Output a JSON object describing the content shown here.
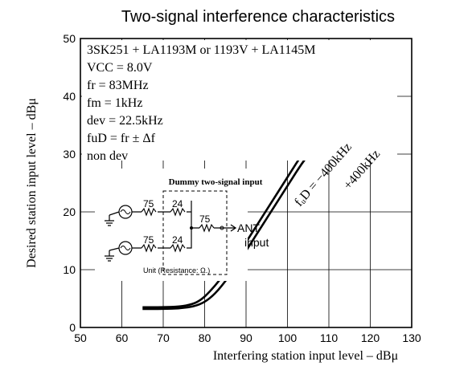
{
  "chart_data": {
    "type": "line",
    "title": "Two-signal interference characteristics",
    "xlabel": "Interfering station input level – dBμ",
    "ylabel": "Desired station input level – dBμ",
    "xlim": [
      50,
      130
    ],
    "ylim": [
      0,
      50
    ],
    "xticks": [
      "50",
      "60",
      "70",
      "80",
      "90",
      "100",
      "110",
      "120",
      "130"
    ],
    "yticks": [
      "0",
      "10",
      "20",
      "30",
      "40",
      "50"
    ],
    "grid": true,
    "series": [
      {
        "name": "fᵤD = −400kHz",
        "points": [
          [
            65,
            3.5
          ],
          [
            70,
            3.5
          ],
          [
            74,
            3.6
          ],
          [
            77,
            4.0
          ],
          [
            79,
            4.7
          ],
          [
            81,
            6.0
          ],
          [
            84,
            8.5
          ],
          [
            88,
            12.5
          ],
          [
            92,
            17.0
          ],
          [
            96,
            21.5
          ],
          [
            100,
            26.0
          ],
          [
            104,
            30.5
          ],
          [
            108,
            34.5
          ],
          [
            112,
            38.0
          ],
          [
            116,
            41.0
          ],
          [
            120,
            44.0
          ]
        ]
      },
      {
        "name": "+400kHz",
        "points": [
          [
            65,
            3.2
          ],
          [
            70,
            3.2
          ],
          [
            74,
            3.3
          ],
          [
            78,
            3.7
          ],
          [
            81,
            4.8
          ],
          [
            84,
            7.0
          ],
          [
            88,
            11.0
          ],
          [
            92,
            15.5
          ],
          [
            96,
            20.0
          ],
          [
            100,
            24.5
          ],
          [
            104,
            29.0
          ],
          [
            108,
            32.5
          ],
          [
            112,
            36.0
          ],
          [
            116,
            39.0
          ],
          [
            120,
            41.5
          ]
        ]
      }
    ],
    "conditions": [
      "3SK251 + LA1193M or 1193V + LA1145M",
      "VCC = 8.0V",
      "fr = 83MHz",
      "fm = 1kHz",
      "dev = 22.5kHz",
      "fuD = fr ± Δf",
      "non dev"
    ],
    "inset": {
      "title": "Dummy two-signal input",
      "resistors": [
        "75",
        "24",
        "75",
        "75",
        "24"
      ],
      "output_label": "ANT",
      "output_sublabel": "input",
      "unit_note": "Unit (Resistance: Ω.)"
    }
  }
}
